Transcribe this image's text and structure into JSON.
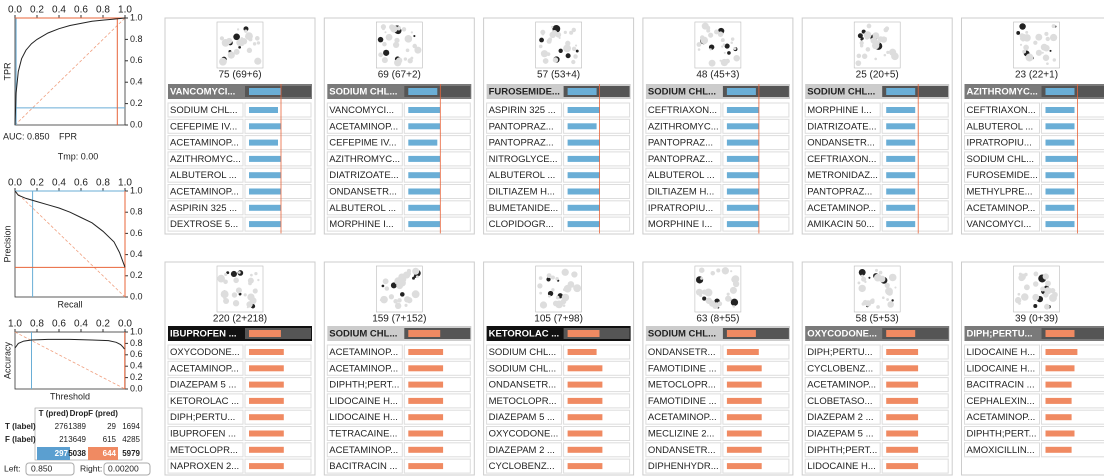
{
  "roc": {
    "x_label": "FPR",
    "y_label": "TPR",
    "auc": "AUC: 0.850",
    "tmp": "Tmp: 0.00",
    "xticks": [
      {
        "value": 0,
        "label": "0.0"
      },
      0.2,
      0.4,
      0.6,
      0.8,
      {
        "value": 1,
        "label": "1.0"
      }
    ],
    "yticks": [
      {
        "value": 0,
        "label": "0.0"
      },
      0.2,
      0.4,
      0.6,
      0.8,
      {
        "value": 1,
        "label": "1.0"
      }
    ],
    "x": [
      0,
      0.01,
      0.03,
      0.06,
      0.1,
      0.15,
      0.2,
      0.3,
      0.4,
      0.5,
      0.6,
      0.7,
      0.8,
      0.9,
      1
    ],
    "y": [
      0,
      0.3,
      0.5,
      0.62,
      0.7,
      0.76,
      0.8,
      0.86,
      0.9,
      0.93,
      0.95,
      0.97,
      0.98,
      0.99,
      1
    ],
    "blue": [
      0.01,
      0.16
    ],
    "red": [
      0.93,
      1
    ]
  },
  "pr": {
    "x_label": "Recall",
    "y_label": "Precision",
    "xticks": [
      {
        "value": 0,
        "label": "0.0"
      },
      0.2,
      0.4,
      0.6,
      0.8,
      {
        "value": 1,
        "label": "1.0"
      }
    ],
    "yticks": [
      {
        "value": 0,
        "label": "0.0"
      },
      0.2,
      0.4,
      0.6,
      0.8,
      {
        "value": 1,
        "label": "1.0"
      }
    ],
    "x": [
      0,
      0.03,
      0.1,
      0.2,
      0.3,
      0.4,
      0.5,
      0.6,
      0.7,
      0.8,
      0.9,
      0.95,
      1
    ],
    "y": [
      1,
      0.96,
      0.93,
      0.9,
      0.87,
      0.84,
      0.8,
      0.75,
      0.7,
      0.62,
      0.52,
      0.42,
      0.28
    ],
    "blue": [
      0.16,
      1
    ],
    "red": [
      1,
      0.28
    ]
  },
  "accuracy": {
    "x_label": "Threshold",
    "y_label": "Accuracy",
    "reversed": true,
    "xticks": [
      {
        "value": 1,
        "label": "1.0"
      },
      0.8,
      0.6,
      0.4,
      0.2,
      {
        "value": 0,
        "label": "0.0"
      }
    ],
    "yticks": [
      {
        "value": 0,
        "label": "0.0"
      },
      0.2,
      0.4,
      0.6,
      0.8,
      {
        "value": 1,
        "label": "1.0"
      }
    ],
    "x": [
      1,
      0.97,
      0.92,
      0.85,
      0.7,
      0.5,
      0.3,
      0.15,
      0.08,
      0.04,
      0.02,
      0.005
    ],
    "y": [
      0.72,
      0.8,
      0.84,
      0.86,
      0.87,
      0.87,
      0.86,
      0.85,
      0.82,
      0.78,
      0.74,
      0.7
    ],
    "blue": [
      0.85
    ],
    "red": [
      0.002
    ]
  },
  "table": {
    "header": [
      "T (pred)",
      "Drop",
      "F (pred)"
    ],
    "rows": [
      {
        "label": "T (label)",
        "cells": [
          276,
          1389,
          29,
          1694
        ]
      },
      {
        "label": "F (label)",
        "cells": [
          21,
          3649,
          615,
          4285
        ]
      }
    ],
    "totals": [
      297,
      5038,
      644,
      5979
    ]
  },
  "controls": {
    "left_label": "Left:",
    "left_value": "0.850",
    "right_label": "Right:",
    "right_value": "0.00200"
  },
  "groups": [
    {
      "bar_color": "#6aaed6",
      "cards": [
        {
          "count": "75 (69+6)",
          "header_style": "dark",
          "header": {
            "name": "VANCOMYCI...",
            "value": 0.55
          },
          "rows": [
            {
              "name": "SODIUM CHL...",
              "value": 0.5
            },
            {
              "name": "CEFEPIME IV...",
              "value": 0.55
            },
            {
              "name": "ACETAMINOP...",
              "value": 0.5
            },
            {
              "name": "AZITHROMYC...",
              "value": 0.55
            },
            {
              "name": "ALBUTEROL ...",
              "value": 0.55
            },
            {
              "name": "ACETAMINOP...",
              "value": 0.55
            },
            {
              "name": "ASPIRIN 325 ...",
              "value": 0.55
            },
            {
              "name": "DEXTROSE 5...",
              "value": 0.55
            }
          ]
        },
        {
          "count": "69 (67+2)",
          "header_style": "dark",
          "header": {
            "name": "SODIUM CHL...",
            "value": 0.5
          },
          "rows": [
            {
              "name": "VANCOMYCI...",
              "value": 0.55
            },
            {
              "name": "ACETAMINOP...",
              "value": 0.55
            },
            {
              "name": "CEFEPIME IV...",
              "value": 0.5
            },
            {
              "name": "AZITHROMYC...",
              "value": 0.55
            },
            {
              "name": "DIATRIZOATE...",
              "value": 0.55
            },
            {
              "name": "ONDANSETR...",
              "value": 0.55
            },
            {
              "name": "ALBUTEROL ...",
              "value": 0.55
            },
            {
              "name": "MORPHINE I...",
              "value": 0.55
            }
          ]
        },
        {
          "count": "57 (53+4)",
          "header_style": "light",
          "header": {
            "name": "FUROSEMIDE...",
            "value": 0.5
          },
          "rows": [
            {
              "name": "ASPIRIN 325 ...",
              "value": 0.55
            },
            {
              "name": "PANTOPRAZ...",
              "value": 0.5
            },
            {
              "name": "PANTOPRAZ...",
              "value": 0.55
            },
            {
              "name": "NITROGLYCE...",
              "value": 0.55
            },
            {
              "name": "ALBUTEROL ...",
              "value": 0.55
            },
            {
              "name": "DILTIAZEM H...",
              "value": 0.55
            },
            {
              "name": "BUMETANIDE...",
              "value": 0.55
            },
            {
              "name": "CLOPIDOGR...",
              "value": 0.55
            }
          ]
        },
        {
          "count": "48 (45+3)",
          "header_style": "light",
          "header": {
            "name": "SODIUM CHL...",
            "value": 0.5
          },
          "rows": [
            {
              "name": "CEFTRIAXON...",
              "value": 0.55
            },
            {
              "name": "AZITHROMYC...",
              "value": 0.55
            },
            {
              "name": "PANTOPRAZ...",
              "value": 0.55
            },
            {
              "name": "PANTOPRAZ...",
              "value": 0.55
            },
            {
              "name": "ALBUTEROL ...",
              "value": 0.55
            },
            {
              "name": "DILTIAZEM H...",
              "value": 0.55
            },
            {
              "name": "IPRATROPIU...",
              "value": 0.55
            },
            {
              "name": "MORPHINE I...",
              "value": 0.55
            }
          ]
        },
        {
          "count": "25 (20+5)",
          "header_style": "light",
          "header": {
            "name": "SODIUM CHL...",
            "value": 0.5
          },
          "rows": [
            {
              "name": "MORPHINE I...",
              "value": 0.5
            },
            {
              "name": "DIATRIZOATE...",
              "value": 0.5
            },
            {
              "name": "ONDANSETR...",
              "value": 0.5
            },
            {
              "name": "CEFTRIAXON...",
              "value": 0.5
            },
            {
              "name": "METRONIDAZ...",
              "value": 0.5
            },
            {
              "name": "PANTOPRAZ...",
              "value": 0.5
            },
            {
              "name": "ACETAMINOP...",
              "value": 0.5
            },
            {
              "name": "AMIKACIN 50...",
              "value": 0.5
            }
          ]
        },
        {
          "count": "23 (22+1)",
          "header_style": "dark",
          "header": {
            "name": "AZITHROMYC...",
            "value": 0.5
          },
          "rows": [
            {
              "name": "CEFTRIAXON...",
              "value": 0.5
            },
            {
              "name": "ALBUTEROL ...",
              "value": 0.5
            },
            {
              "name": "IPRATROPIU...",
              "value": 0.5
            },
            {
              "name": "SODIUM CHL...",
              "value": 0.55
            },
            {
              "name": "FUROSEMIDE...",
              "value": 0.5
            },
            {
              "name": "METHYLPRE...",
              "value": 0.5
            },
            {
              "name": "ACETAMINOP...",
              "value": 0.5
            },
            {
              "name": "VANCOMYCI...",
              "value": 0.5
            }
          ]
        }
      ]
    },
    {
      "bar_color": "#f08a62",
      "cards": [
        {
          "count": "220 (2+218)",
          "header_style": "black",
          "header": {
            "name": "IBUPROFEN ...",
            "value": 0.55
          },
          "rows": [
            {
              "name": "OXYCODONE...",
              "value": 0.6
            },
            {
              "name": "ACETAMINOP...",
              "value": 0.6
            },
            {
              "name": "DIAZEPAM 5 ...",
              "value": 0.6
            },
            {
              "name": "KETOROLAC ...",
              "value": 0.6
            },
            {
              "name": "DIPH;PERTU...",
              "value": 0.6
            },
            {
              "name": "IBUPROFEN ...",
              "value": 0.6
            },
            {
              "name": "METOCLOPR...",
              "value": 0.6
            },
            {
              "name": "NAPROXEN 2...",
              "value": 0.6
            }
          ]
        },
        {
          "count": "159 (7+152)",
          "header_style": "light",
          "header": {
            "name": "SODIUM CHL...",
            "value": 0.55
          },
          "rows": [
            {
              "name": "ACETAMINOP...",
              "value": 0.6
            },
            {
              "name": "ACETAMINOP...",
              "value": 0.6
            },
            {
              "name": "DIPHTH;PERT...",
              "value": 0.6
            },
            {
              "name": "LIDOCAINE H...",
              "value": 0.6
            },
            {
              "name": "LIDOCAINE H...",
              "value": 0.6
            },
            {
              "name": "TETRACAINE...",
              "value": 0.6
            },
            {
              "name": "ACETAMINOP...",
              "value": 0.6
            },
            {
              "name": "BACITRACIN ...",
              "value": 0.6
            }
          ]
        },
        {
          "count": "105 (7+98)",
          "header_style": "black",
          "header": {
            "name": "KETOROLAC ...",
            "value": 0.55
          },
          "rows": [
            {
              "name": "SODIUM CHL...",
              "value": 0.5
            },
            {
              "name": "SODIUM CHL...",
              "value": 0.6
            },
            {
              "name": "ONDANSETR...",
              "value": 0.6
            },
            {
              "name": "METOCLOPR...",
              "value": 0.6
            },
            {
              "name": "DIAZEPAM 5 ...",
              "value": 0.6
            },
            {
              "name": "OXYCODONE...",
              "value": 0.6
            },
            {
              "name": "DIAZEPAM 2 ...",
              "value": 0.6
            },
            {
              "name": "CYCLOBENZ...",
              "value": 0.6
            }
          ]
        },
        {
          "count": "63 (8+55)",
          "header_style": "light",
          "header": {
            "name": "SODIUM CHL...",
            "value": 0.5
          },
          "rows": [
            {
              "name": "ONDANSETR...",
              "value": 0.55
            },
            {
              "name": "FAMOTIDINE ...",
              "value": 0.6
            },
            {
              "name": "METOCLOPR...",
              "value": 0.6
            },
            {
              "name": "FAMOTIDINE ...",
              "value": 0.6
            },
            {
              "name": "ACETAMINOP...",
              "value": 0.6
            },
            {
              "name": "MECLIZINE 2...",
              "value": 0.6
            },
            {
              "name": "ONDANSETR...",
              "value": 0.6
            },
            {
              "name": "DIPHENHYDR...",
              "value": 0.6
            }
          ]
        },
        {
          "count": "58 (5+53)",
          "header_style": "dark",
          "header": {
            "name": "OXYCODONE...",
            "value": 0.5
          },
          "rows": [
            {
              "name": "DIPH;PERTU...",
              "value": 0.55
            },
            {
              "name": "CYCLOBENZ...",
              "value": 0.55
            },
            {
              "name": "ACETAMINOP...",
              "value": 0.55
            },
            {
              "name": "CLOBETASO...",
              "value": 0.55
            },
            {
              "name": "DIAZEPAM 2 ...",
              "value": 0.55
            },
            {
              "name": "DIAZEPAM 5 ...",
              "value": 0.55
            },
            {
              "name": "DIPHTH;PERT...",
              "value": 0.55
            },
            {
              "name": "LIDOCAINE H...",
              "value": 0.55
            }
          ]
        },
        {
          "count": "39 (0+39)",
          "header_style": "dark",
          "header": {
            "name": "DIPH;PERTU...",
            "value": 0.5
          },
          "rows": [
            {
              "name": "LIDOCAINE H...",
              "value": 0.55
            },
            {
              "name": "LIDOCAINE H...",
              "value": 0.5
            },
            {
              "name": "BACITRACIN ...",
              "value": 0.45
            },
            {
              "name": "CEPHALEXIN...",
              "value": 0.45
            },
            {
              "name": "ACETAMINOP...",
              "value": 0.45
            },
            {
              "name": "DIPHTH;PERT...",
              "value": 0.5
            },
            {
              "name": "AMOXICILLIN...",
              "value": 0.45
            }
          ]
        }
      ]
    }
  ]
}
